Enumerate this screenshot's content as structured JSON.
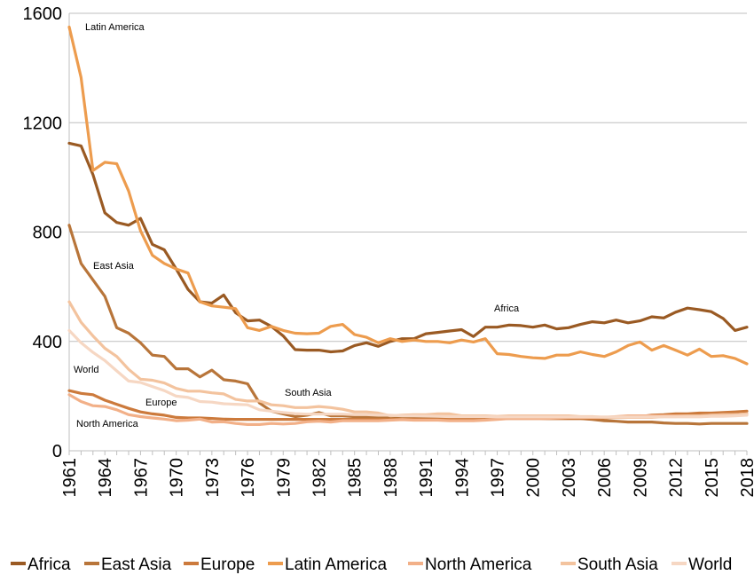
{
  "chart_data": {
    "type": "line",
    "title": "",
    "xlabel": "",
    "ylabel": "",
    "ylim": [
      0,
      1600
    ],
    "yticks": [
      0,
      400,
      800,
      1200,
      1600
    ],
    "x_tick_labels": [
      "1961",
      "1964",
      "1967",
      "1970",
      "1973",
      "1976",
      "1979",
      "1982",
      "1985",
      "1988",
      "1991",
      "1994",
      "1997",
      "2000",
      "2003",
      "2006",
      "2009",
      "2012",
      "2015",
      "2018"
    ],
    "x": [
      1961,
      1962,
      1963,
      1964,
      1965,
      1966,
      1967,
      1968,
      1969,
      1970,
      1971,
      1972,
      1973,
      1974,
      1975,
      1976,
      1977,
      1978,
      1979,
      1980,
      1981,
      1982,
      1983,
      1984,
      1985,
      1986,
      1987,
      1988,
      1989,
      1990,
      1991,
      1992,
      1993,
      1994,
      1995,
      1996,
      1997,
      1998,
      1999,
      2000,
      2001,
      2002,
      2003,
      2004,
      2005,
      2006,
      2007,
      2008,
      2009,
      2010,
      2011,
      2012,
      2013,
      2014,
      2015,
      2016,
      2017,
      2018
    ],
    "grid": "horizontal",
    "legend_position": "bottom",
    "series": [
      {
        "name": "Africa",
        "color": "#9a5a23",
        "values": [
          1125,
          1115,
          1010,
          870,
          835,
          825,
          850,
          755,
          735,
          665,
          590,
          545,
          540,
          570,
          505,
          475,
          478,
          455,
          420,
          370,
          368,
          368,
          362,
          365,
          385,
          395,
          382,
          400,
          410,
          410,
          428,
          433,
          438,
          443,
          418,
          452,
          452,
          460,
          458,
          452,
          460,
          446,
          450,
          462,
          472,
          468,
          478,
          468,
          475,
          490,
          486,
          507,
          522,
          516,
          509,
          484,
          440,
          452
        ]
      },
      {
        "name": "East Asia",
        "color": "#b8753a",
        "values": [
          825,
          685,
          625,
          565,
          450,
          430,
          395,
          350,
          345,
          300,
          300,
          270,
          295,
          260,
          255,
          245,
          175,
          145,
          135,
          125,
          130,
          140,
          128,
          128,
          125,
          125,
          125,
          125,
          125,
          125,
          125,
          125,
          125,
          125,
          125,
          125,
          122,
          122,
          122,
          120,
          118,
          118,
          118,
          118,
          115,
          110,
          108,
          105,
          105,
          105,
          102,
          100,
          100,
          98,
          100,
          100,
          100,
          100
        ]
      },
      {
        "name": "Europe",
        "color": "#cc7a3c",
        "values": [
          220,
          210,
          205,
          185,
          170,
          155,
          142,
          135,
          130,
          122,
          120,
          120,
          118,
          116,
          115,
          115,
          115,
          115,
          115,
          115,
          115,
          115,
          115,
          115,
          115,
          115,
          115,
          115,
          115,
          115,
          115,
          115,
          115,
          115,
          117,
          117,
          117,
          118,
          118,
          118,
          118,
          118,
          118,
          118,
          118,
          120,
          122,
          125,
          125,
          130,
          132,
          135,
          135,
          138,
          138,
          140,
          142,
          145
        ]
      },
      {
        "name": "Latin America",
        "color": "#ed9c4e",
        "values": [
          1550,
          1365,
          1025,
          1055,
          1050,
          950,
          805,
          715,
          685,
          665,
          650,
          545,
          530,
          525,
          520,
          450,
          440,
          455,
          440,
          430,
          428,
          430,
          455,
          462,
          425,
          415,
          395,
          410,
          400,
          405,
          400,
          400,
          395,
          405,
          398,
          410,
          355,
          352,
          345,
          340,
          338,
          350,
          350,
          362,
          352,
          345,
          362,
          385,
          398,
          368,
          385,
          368,
          350,
          372,
          345,
          348,
          338,
          318
        ]
      },
      {
        "name": "North America",
        "color": "#f2b088",
        "values": [
          205,
          180,
          165,
          162,
          150,
          132,
          125,
          120,
          116,
          110,
          112,
          116,
          105,
          106,
          100,
          96,
          96,
          100,
          98,
          100,
          106,
          108,
          105,
          110,
          110,
          110,
          110,
          112,
          114,
          112,
          112,
          112,
          110,
          110,
          110,
          112,
          115,
          118,
          118,
          118,
          118,
          120,
          122,
          122,
          122,
          122,
          125,
          128,
          128,
          128,
          128,
          128,
          128,
          128,
          130,
          132,
          132,
          134
        ]
      },
      {
        "name": "South Asia",
        "color": "#f3c39e",
        "values": [
          545,
          470,
          420,
          375,
          345,
          298,
          262,
          258,
          248,
          228,
          218,
          218,
          212,
          208,
          188,
          182,
          182,
          168,
          165,
          158,
          158,
          162,
          158,
          152,
          142,
          142,
          138,
          128,
          130,
          132,
          132,
          135,
          135,
          128,
          128,
          128,
          126,
          128,
          128,
          128,
          128,
          128,
          128,
          125,
          125,
          122,
          122,
          122,
          122,
          122,
          125,
          125,
          128,
          128,
          130,
          132,
          132,
          135
        ]
      },
      {
        "name": "World",
        "color": "#f6d7c3",
        "values": [
          440,
          395,
          360,
          330,
          292,
          255,
          250,
          235,
          220,
          200,
          195,
          180,
          178,
          172,
          170,
          168,
          150,
          145,
          140,
          136,
          134,
          134,
          134,
          134,
          132,
          132,
          130,
          130,
          128,
          128,
          127,
          126,
          125,
          125,
          125,
          125,
          124,
          124,
          124,
          124,
          124,
          124,
          124,
          124,
          124,
          124,
          124,
          124,
          124,
          124,
          124,
          124,
          124,
          124,
          126,
          126,
          128,
          130
        ]
      }
    ],
    "annotations": [
      {
        "text": "Latin America",
        "series": "Latin America"
      },
      {
        "text": "East Asia",
        "series": "East Asia"
      },
      {
        "text": "World",
        "series": "World"
      },
      {
        "text": "Europe",
        "series": "Europe"
      },
      {
        "text": "North America",
        "series": "North America"
      },
      {
        "text": "South Asia",
        "series": "South Asia"
      },
      {
        "text": "Africa",
        "series": "Africa"
      }
    ]
  }
}
